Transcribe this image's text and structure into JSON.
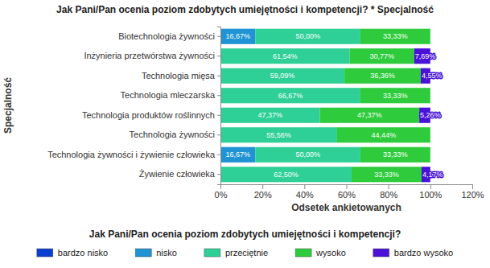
{
  "chart_data": {
    "type": "bar",
    "orientation": "horizontal",
    "stacked": true,
    "data_labels": true,
    "grid": false,
    "legend": "bottom",
    "title": "Jak Pani/Pan ocenia poziom zdobytych umiejętności i kompetencji? * Specjalność",
    "x_label": "Odsetek ankietowanych",
    "y_label": "Specjalność",
    "legend_title": "Jak Pani/Pan ocenia poziom zdobytych umiejętności i kompetencji?",
    "categories": [
      "Biotechnologia żywności",
      "Inżynieria przetwórstwa żywności",
      "Technologia mięsa",
      "Technologia mleczarska",
      "Technologia produktów roślinnych",
      "Technologia żywności",
      "Technologia żywności i żywienie człowieka",
      "Żywienie człowieka"
    ],
    "xlim": [
      0,
      120
    ],
    "xticks": [
      {
        "value": 0,
        "label": "0%"
      },
      {
        "value": 20,
        "label": "20%"
      },
      {
        "value": 40,
        "label": "40%"
      },
      {
        "value": 60,
        "label": "60%"
      },
      {
        "value": 80,
        "label": "80%"
      },
      {
        "value": 100,
        "label": "100%"
      },
      {
        "value": 120,
        "label": "120%"
      }
    ],
    "series": [
      {
        "name": "bardzo nisko",
        "color": "#0a3fd0",
        "values": [
          null,
          null,
          null,
          null,
          null,
          null,
          null,
          null
        ],
        "value_labels": [
          null,
          null,
          null,
          null,
          null,
          null,
          null,
          null
        ]
      },
      {
        "name": "nisko",
        "color": "#1f93d3",
        "values": [
          16.67,
          null,
          null,
          null,
          null,
          null,
          16.67,
          null
        ],
        "value_labels": [
          "16,67%",
          null,
          null,
          null,
          null,
          null,
          "16,67%",
          null
        ]
      },
      {
        "name": "przeciętnie",
        "color": "#2fcf98",
        "values": [
          50.0,
          61.54,
          59.09,
          66.67,
          47.37,
          55.56,
          50.0,
          62.5
        ],
        "value_labels": [
          "50,00%",
          "61,54%",
          "59,09%",
          "66,67%",
          "47,37%",
          "55,56%",
          "50,00%",
          "62,50%"
        ]
      },
      {
        "name": "wysoko",
        "color": "#2ecc3c",
        "values": [
          33.33,
          30.77,
          36.36,
          33.33,
          47.37,
          44.44,
          33.33,
          33.33
        ],
        "value_labels": [
          "33,33%",
          "30,77%",
          "36,36%",
          "33,33%",
          "47,37%",
          "44,44%",
          "33,33%",
          "33,33%"
        ]
      },
      {
        "name": "bardzo wysoko",
        "color": "#4a12d6",
        "values": [
          null,
          7.69,
          4.55,
          null,
          5.26,
          null,
          null,
          4.17
        ],
        "value_labels": [
          null,
          "7,69%",
          "4,55%",
          null,
          "5,26%",
          null,
          null,
          "4,17%"
        ]
      }
    ]
  }
}
